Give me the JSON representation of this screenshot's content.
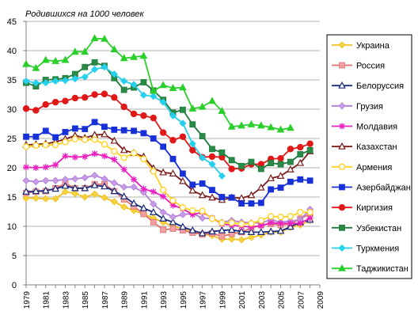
{
  "chart_data": {
    "type": "line",
    "title": "Родившихся на 1000 человек",
    "xlabel": "",
    "ylabel": "",
    "ylim": [
      0,
      45
    ],
    "yticks": [
      0,
      5,
      10,
      15,
      20,
      25,
      30,
      35,
      40,
      45
    ],
    "xlim": [
      1979,
      2009
    ],
    "xticks": [
      1979,
      1981,
      1983,
      1985,
      1987,
      1989,
      1991,
      1993,
      1995,
      1997,
      1999,
      2001,
      2003,
      2005,
      2007,
      2009
    ],
    "grid": "horizontal",
    "legend": "right",
    "x": [
      1979,
      1980,
      1981,
      1982,
      1983,
      1984,
      1985,
      1986,
      1987,
      1988,
      1989,
      1990,
      1991,
      1992,
      1993,
      1994,
      1995,
      1996,
      1997,
      1998,
      1999,
      2000,
      2001,
      2002,
      2003,
      2004,
      2005,
      2006,
      2007,
      2008
    ],
    "series": [
      {
        "name": "Украина",
        "color": "#f2c01e",
        "marker": "diamond",
        "fill": "#f5d23c",
        "values": [
          14.8,
          14.8,
          14.7,
          14.7,
          15.9,
          15.6,
          15.0,
          15.5,
          14.9,
          14.2,
          13.3,
          12.7,
          12.1,
          11.4,
          10.7,
          10.0,
          9.6,
          9.1,
          8.7,
          8.4,
          7.8,
          7.8,
          7.7,
          8.1,
          8.5,
          9.0,
          9.0,
          9.8,
          10.2,
          11.0
        ]
      },
      {
        "name": "Россия",
        "color": "#e07070",
        "marker": "square",
        "fill": "#f0a0a0",
        "values": [
          15.7,
          15.9,
          16.0,
          16.5,
          17.3,
          16.5,
          16.5,
          17.2,
          17.2,
          16.0,
          14.6,
          13.4,
          12.1,
          10.7,
          9.4,
          9.6,
          9.3,
          8.9,
          8.6,
          8.8,
          8.3,
          8.7,
          9.0,
          9.7,
          10.2,
          10.4,
          10.2,
          10.4,
          11.3,
          12.1
        ]
      },
      {
        "name": "Белоруссия",
        "color": "#1a2a7a",
        "marker": "triangle-open",
        "fill": "#ffffff",
        "values": [
          15.9,
          16.0,
          16.1,
          16.4,
          16.9,
          16.5,
          16.5,
          17.0,
          16.8,
          16.0,
          15.1,
          13.9,
          13.1,
          12.4,
          11.3,
          10.7,
          9.9,
          9.3,
          8.8,
          9.1,
          9.3,
          9.4,
          9.1,
          9.0,
          9.0,
          9.1,
          9.2,
          9.9,
          10.7,
          11.1
        ]
      },
      {
        "name": "Грузия",
        "color": "#b07fd8",
        "marker": "diamond",
        "fill": "#c89ae8",
        "values": [
          17.8,
          17.6,
          17.8,
          17.8,
          18.0,
          18.1,
          18.3,
          18.7,
          18.1,
          17.4,
          16.7,
          16.7,
          15.8,
          13.8,
          12.4,
          11.6,
          12.0,
          12.2,
          11.4,
          11.3,
          10.7,
          11.0,
          10.7,
          10.6,
          10.6,
          11.1,
          10.7,
          10.9,
          11.1,
          12.9
        ]
      },
      {
        "name": "Молдавия",
        "color": "#ea1fbf",
        "marker": "asterisk",
        "fill": "#ea1fbf",
        "values": [
          20.1,
          20.0,
          20.1,
          20.5,
          22.0,
          21.8,
          21.9,
          22.4,
          22.0,
          21.4,
          19.7,
          18.0,
          16.4,
          15.9,
          15.1,
          13.6,
          13.0,
          12.0,
          12.4,
          11.4,
          10.4,
          10.2,
          10.0,
          9.9,
          10.1,
          10.6,
          10.5,
          10.5,
          10.5,
          11.4
        ]
      },
      {
        "name": "Казахстан",
        "color": "#7a1a1a",
        "marker": "triangle-open",
        "fill": "#ffffff",
        "values": [
          23.9,
          24.0,
          24.1,
          24.4,
          24.9,
          25.5,
          25.1,
          25.6,
          25.7,
          24.6,
          23.0,
          22.5,
          21.9,
          19.9,
          19.2,
          19.0,
          17.7,
          16.1,
          15.3,
          14.9,
          14.5,
          14.9,
          14.8,
          15.3,
          16.6,
          18.2,
          18.6,
          19.7,
          20.8,
          22.8
        ]
      },
      {
        "name": "Армения",
        "color": "#ffd21e",
        "marker": "circle-open",
        "fill": "#ffffff",
        "values": [
          23.6,
          23.8,
          23.9,
          23.9,
          24.4,
          24.9,
          24.8,
          24.8,
          24.0,
          22.8,
          21.7,
          22.5,
          21.5,
          19.4,
          16.2,
          14.4,
          13.2,
          12.7,
          12.6,
          11.3,
          10.6,
          10.6,
          10.4,
          10.5,
          11.0,
          11.7,
          11.6,
          11.7,
          12.4,
          12.4
        ]
      },
      {
        "name": "Азербайджан",
        "color": "#1730d8",
        "marker": "square",
        "fill": "#1730d8",
        "values": [
          25.3,
          25.3,
          26.3,
          25.2,
          26.1,
          26.7,
          26.6,
          27.8,
          27.0,
          26.5,
          26.4,
          26.3,
          25.9,
          25.0,
          23.6,
          21.5,
          19.0,
          17.1,
          17.3,
          16.2,
          15.0,
          14.9,
          13.9,
          13.9,
          14.0,
          16.3,
          16.6,
          17.6,
          18.0,
          17.8
        ]
      },
      {
        "name": "Киргизия",
        "color": "#e01818",
        "marker": "circle",
        "fill": "#e01818",
        "values": [
          30.1,
          29.8,
          30.8,
          31.2,
          31.4,
          31.9,
          32.0,
          32.5,
          32.6,
          32.0,
          30.4,
          29.2,
          28.9,
          28.5,
          26.0,
          24.7,
          25.3,
          23.0,
          21.8,
          21.9,
          21.8,
          19.8,
          19.9,
          20.6,
          20.6,
          21.5,
          21.6,
          23.2,
          23.5,
          24.1
        ]
      },
      {
        "name": "Узбекистан",
        "color": "#1d7a3a",
        "marker": "square",
        "fill": "#2a8a48",
        "values": [
          34.5,
          33.9,
          35.0,
          35.1,
          35.3,
          36.0,
          37.2,
          38.0,
          37.4,
          35.3,
          33.3,
          33.7,
          34.6,
          33.2,
          31.6,
          29.4,
          29.9,
          27.4,
          25.4,
          23.2,
          22.6,
          21.3,
          20.3,
          21.0,
          19.8,
          20.8,
          20.6,
          21.0,
          22.3,
          23.0
        ]
      },
      {
        "name": "Туркмения",
        "color": "#25d0ee",
        "marker": "diamond",
        "fill": "#25d0ee",
        "values": [
          34.8,
          34.5,
          34.5,
          34.8,
          34.9,
          35.2,
          35.5,
          36.8,
          37.2,
          36.0,
          34.8,
          34.2,
          32.4,
          32.2,
          31.2,
          28.9,
          27.6,
          24.1,
          21.7,
          20.6,
          18.6,
          null,
          null,
          null,
          null,
          null,
          null,
          null,
          null,
          null
        ]
      },
      {
        "name": "Таджикистан",
        "color": "#2ad02a",
        "marker": "triangle",
        "fill": "#2ad02a",
        "values": [
          37.7,
          37.0,
          38.4,
          38.2,
          38.4,
          39.8,
          39.8,
          42.1,
          42.0,
          40.2,
          38.7,
          38.9,
          39.1,
          33.1,
          34.1,
          33.6,
          33.7,
          30.1,
          30.4,
          31.4,
          29.7,
          27.0,
          27.2,
          27.4,
          27.2,
          26.9,
          26.5,
          26.8,
          null,
          null
        ]
      }
    ]
  }
}
